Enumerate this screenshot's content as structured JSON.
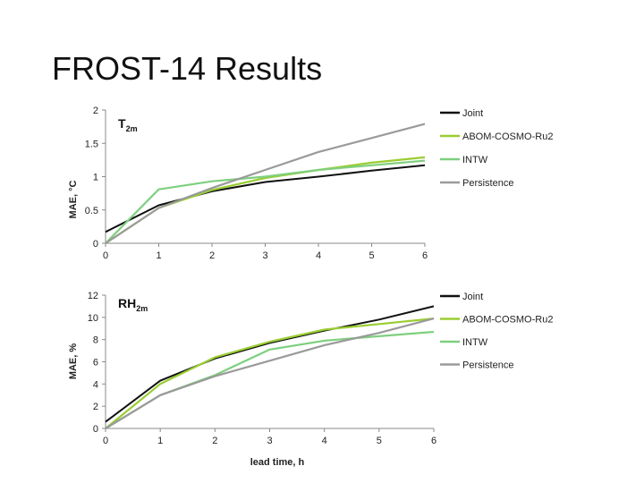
{
  "slide": {
    "title": "FROST-14 Results"
  },
  "chart_data": [
    {
      "type": "line",
      "title_main": "T",
      "title_sub": "2m",
      "xlabel": "",
      "ylabel": "MAE, °C",
      "x": [
        0,
        1,
        2,
        3,
        4,
        5,
        6
      ],
      "xlim": [
        0,
        6
      ],
      "ylim": [
        0,
        2
      ],
      "yticks": [
        0,
        0.5,
        1,
        1.5,
        2
      ],
      "ytick_labels": [
        "0",
        "0.5",
        "1",
        "1.5",
        "2"
      ],
      "xtick_labels": [
        "0",
        "1",
        "2",
        "3",
        "4",
        "5",
        "6"
      ],
      "legend_position": "right",
      "series": [
        {
          "name": "Joint",
          "color": "#111111",
          "values": [
            0.17,
            0.57,
            0.78,
            0.92,
            1.0,
            1.09,
            1.17
          ]
        },
        {
          "name": "ABOM-COSMO-Ru2",
          "color": "#9acd32",
          "values": [
            0.0,
            0.53,
            0.8,
            0.98,
            1.1,
            1.21,
            1.29
          ]
        },
        {
          "name": "INTW",
          "color": "#7fcf7f",
          "values": [
            0.0,
            0.81,
            0.93,
            1.0,
            1.1,
            1.17,
            1.24
          ]
        },
        {
          "name": "Persistence",
          "color": "#9a9a9a",
          "values": [
            0.0,
            0.53,
            0.83,
            1.1,
            1.37,
            1.58,
            1.79
          ]
        }
      ]
    },
    {
      "type": "line",
      "title_main": "RH",
      "title_sub": "2m",
      "xlabel": "lead time, h",
      "ylabel": "MAE, %",
      "x": [
        0,
        1,
        2,
        3,
        4,
        5,
        6
      ],
      "xlim": [
        0,
        6
      ],
      "ylim": [
        0,
        12
      ],
      "yticks": [
        0,
        2,
        4,
        6,
        8,
        10,
        12
      ],
      "ytick_labels": [
        "0",
        "2",
        "4",
        "6",
        "8",
        "10",
        "12"
      ],
      "xtick_labels": [
        "0",
        "1",
        "2",
        "3",
        "4",
        "5",
        "6"
      ],
      "legend_position": "right",
      "series": [
        {
          "name": "Joint",
          "color": "#111111",
          "values": [
            0.6,
            4.3,
            6.3,
            7.7,
            8.8,
            9.8,
            11.0
          ]
        },
        {
          "name": "ABOM-COSMO-Ru2",
          "color": "#9acd32",
          "values": [
            0.0,
            4.0,
            6.4,
            7.8,
            8.9,
            9.4,
            9.9
          ]
        },
        {
          "name": "INTW",
          "color": "#7fcf7f",
          "values": [
            0.0,
            3.0,
            4.8,
            7.1,
            7.9,
            8.3,
            8.7
          ]
        },
        {
          "name": "Persistence",
          "color": "#9a9a9a",
          "values": [
            0.0,
            3.0,
            4.7,
            6.1,
            7.5,
            8.6,
            9.9
          ]
        }
      ]
    }
  ]
}
